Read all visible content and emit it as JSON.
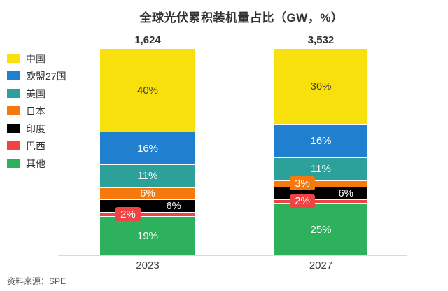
{
  "title": "全球光伏累积装机量占比（GW，%）",
  "source": "资料来源：SPE",
  "chart_data": {
    "type": "bar",
    "stacked": true,
    "orientation": "vertical",
    "unit": "GW",
    "value_suffix": "%",
    "categories": [
      "2023",
      "2027"
    ],
    "totals": [
      "1,624",
      "3,532"
    ],
    "legend_position": "left",
    "grid": false,
    "axis_color": "#d9d9d9",
    "series": [
      {
        "name": "中国",
        "color": "#f8e00d",
        "values": [
          40,
          36
        ],
        "label_color": "#3f3f3f",
        "label_styles": [
          "inside",
          "inside"
        ]
      },
      {
        "name": "欧盟27国",
        "color": "#2080cf",
        "values": [
          16,
          16
        ],
        "label_color": "#ffffff",
        "label_styles": [
          "inside",
          "inside"
        ]
      },
      {
        "name": "美国",
        "color": "#2ba199",
        "values": [
          11,
          11
        ],
        "label_color": "#ffffff",
        "label_styles": [
          "inside",
          "inside"
        ]
      },
      {
        "name": "日本",
        "color": "#f5790d",
        "values": [
          6,
          3
        ],
        "label_color": "#ffffff",
        "label_styles": [
          "inside",
          "callout"
        ]
      },
      {
        "name": "印度",
        "color": "#000000",
        "values": [
          6,
          6
        ],
        "label_color": "#ffffff",
        "label_styles": [
          "inside-right",
          "inside-right"
        ]
      },
      {
        "name": "巴西",
        "color": "#f04343",
        "values": [
          2,
          2
        ],
        "label_color": "#ffffff",
        "label_styles": [
          "callout",
          "callout"
        ]
      },
      {
        "name": "其他",
        "color": "#2eb15c",
        "values": [
          19,
          25
        ],
        "label_color": "#ffffff",
        "label_styles": [
          "inside",
          "inside"
        ]
      }
    ]
  }
}
